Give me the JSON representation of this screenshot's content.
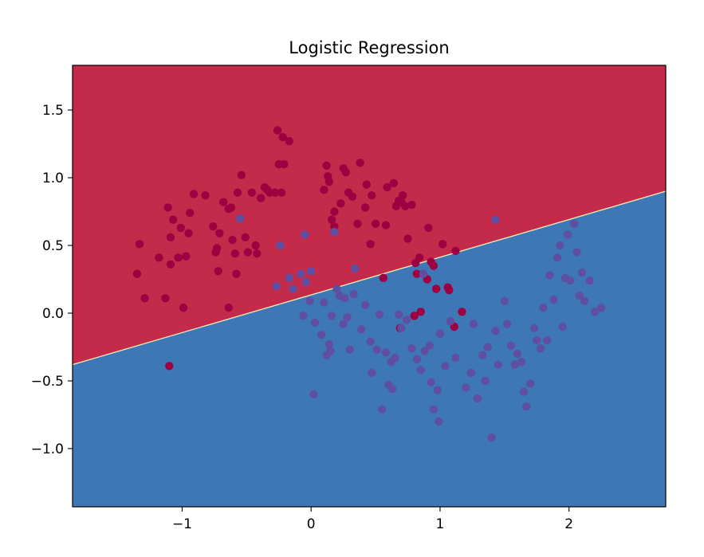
{
  "chart_data": {
    "type": "scatter",
    "title": "Logistic Regression",
    "xlabel": "",
    "ylabel": "",
    "xlim": [
      -1.85,
      2.75
    ],
    "ylim": [
      -1.43,
      1.83
    ],
    "xticks": [
      {
        "v": -1,
        "label": "−1"
      },
      {
        "v": 0,
        "label": "0"
      },
      {
        "v": 1,
        "label": "1"
      },
      {
        "v": 2,
        "label": "2"
      }
    ],
    "yticks": [
      {
        "v": 1.5,
        "label": "1.5"
      },
      {
        "v": 1.0,
        "label": "1.0"
      },
      {
        "v": 0.5,
        "label": "0.5"
      },
      {
        "v": 0.0,
        "label": "0.0"
      },
      {
        "v": -0.5,
        "label": "−0.5"
      },
      {
        "v": -1.0,
        "label": "−1.0"
      }
    ],
    "grid": false,
    "legend": "none",
    "decision_boundary": {
      "x": [
        -1.85,
        2.75
      ],
      "y": [
        -0.38,
        0.9
      ]
    },
    "regions": {
      "upper_color": "#c42a49",
      "lower_color": "#3e77b5",
      "boundary_color": "#f4f0b6"
    },
    "series": [
      {
        "class": 0,
        "color": "#9e0142",
        "points": [
          [
            -1.35,
            0.29
          ],
          [
            -1.33,
            0.51
          ],
          [
            -1.29,
            0.11
          ],
          [
            -1.18,
            0.41
          ],
          [
            -1.13,
            0.11
          ],
          [
            -1.11,
            0.78
          ],
          [
            -1.09,
            0.56
          ],
          [
            -1.09,
            0.36
          ],
          [
            -1.07,
            0.69
          ],
          [
            -1.03,
            0.41
          ],
          [
            -1.01,
            0.63
          ],
          [
            -0.99,
            0.04
          ],
          [
            -0.97,
            0.42
          ],
          [
            -0.95,
            0.59
          ],
          [
            -0.94,
            0.74
          ],
          [
            -0.91,
            0.88
          ],
          [
            -0.82,
            0.87
          ],
          [
            -0.76,
            0.64
          ],
          [
            -0.74,
            0.45
          ],
          [
            -0.73,
            0.48
          ],
          [
            -0.72,
            0.31
          ],
          [
            -0.71,
            0.59
          ],
          [
            -0.68,
            0.82
          ],
          [
            -0.64,
            0.77
          ],
          [
            -0.64,
            0.04
          ],
          [
            -0.62,
            0.78
          ],
          [
            -0.61,
            0.54
          ],
          [
            -0.59,
            0.44
          ],
          [
            -0.58,
            0.29
          ],
          [
            -0.57,
            0.89
          ],
          [
            -0.54,
            1.02
          ],
          [
            -0.51,
            0.56
          ],
          [
            -0.49,
            0.45
          ],
          [
            -0.46,
            0.89
          ],
          [
            -0.43,
            0.5
          ],
          [
            -0.42,
            0.44
          ],
          [
            -0.39,
            0.85
          ],
          [
            -0.36,
            0.93
          ],
          [
            -0.34,
            0.91
          ],
          [
            -0.32,
            0.89
          ],
          [
            -0.28,
            0.89
          ],
          [
            -0.26,
            1.35
          ],
          [
            -0.25,
            1.1
          ],
          [
            -0.23,
            0.89
          ],
          [
            -0.22,
            1.3
          ],
          [
            -0.21,
            1.1
          ],
          [
            -0.17,
            1.27
          ],
          [
            0.1,
            0.91
          ],
          [
            0.12,
            1.09
          ],
          [
            0.13,
            1.01
          ],
          [
            0.14,
            0.97
          ],
          [
            0.16,
            0.69
          ],
          [
            0.18,
            0.64
          ],
          [
            0.18,
            0.75
          ],
          [
            0.23,
            0.81
          ],
          [
            0.25,
            1.07
          ],
          [
            0.27,
            1.04
          ],
          [
            0.29,
            0.89
          ],
          [
            0.32,
            0.86
          ],
          [
            0.36,
            0.66
          ],
          [
            0.38,
            1.11
          ],
          [
            0.42,
            0.78
          ],
          [
            0.43,
            0.95
          ],
          [
            0.46,
            0.51
          ],
          [
            0.47,
            0.87
          ],
          [
            0.5,
            0.66
          ],
          [
            0.56,
            0.26
          ],
          [
            0.58,
            0.65
          ],
          [
            0.59,
            0.93
          ],
          [
            0.64,
            0.96
          ],
          [
            0.66,
            0.79
          ],
          [
            0.68,
            0.83
          ],
          [
            0.7,
            0.82
          ],
          [
            0.71,
            0.87
          ],
          [
            0.73,
            0.79
          ],
          [
            0.75,
            0.55
          ],
          [
            0.78,
            0.8
          ],
          [
            0.81,
            0.37
          ],
          [
            0.82,
            0.29
          ],
          [
            0.84,
            0.41
          ],
          [
            0.87,
            0.29
          ],
          [
            0.9,
            0.25
          ],
          [
            0.91,
            0.63
          ],
          [
            0.93,
            0.38
          ],
          [
            0.95,
            0.35
          ],
          [
            0.97,
            0.18
          ],
          [
            1.02,
            0.51
          ],
          [
            1.06,
            0.19
          ],
          [
            1.07,
            0.17
          ],
          [
            1.12,
            0.46
          ],
          [
            0.69,
            -0.11
          ],
          [
            0.8,
            -0.02
          ],
          [
            0.85,
            0.01
          ],
          [
            1.11,
            -0.1
          ],
          [
            1.17,
            0.01
          ],
          [
            -1.1,
            -0.39
          ]
        ]
      },
      {
        "class": 1,
        "color": "#5e4fa2",
        "points": [
          [
            -0.55,
            0.7
          ],
          [
            -0.27,
            0.2
          ],
          [
            -0.24,
            0.5
          ],
          [
            -0.17,
            0.26
          ],
          [
            -0.14,
            0.18
          ],
          [
            -0.08,
            0.29
          ],
          [
            -0.05,
            0.58
          ],
          [
            -0.04,
            0.23
          ],
          [
            0.0,
            0.31
          ],
          [
            -0.01,
            0.09
          ],
          [
            -0.06,
            -0.02
          ],
          [
            0.02,
            -0.6
          ],
          [
            0.03,
            -0.07
          ],
          [
            0.08,
            -0.16
          ],
          [
            0.1,
            0.08
          ],
          [
            0.12,
            -0.31
          ],
          [
            0.14,
            -0.23
          ],
          [
            0.15,
            -0.28
          ],
          [
            0.16,
            -0.02
          ],
          [
            0.18,
            0.6
          ],
          [
            0.2,
            0.18
          ],
          [
            0.22,
            0.13
          ],
          [
            0.25,
            -0.08
          ],
          [
            0.26,
            0.11
          ],
          [
            0.28,
            -0.03
          ],
          [
            0.3,
            -0.27
          ],
          [
            0.33,
            0.14
          ],
          [
            0.34,
            0.33
          ],
          [
            0.39,
            -0.12
          ],
          [
            0.42,
            0.06
          ],
          [
            0.46,
            -0.21
          ],
          [
            0.47,
            -0.44
          ],
          [
            0.51,
            -0.27
          ],
          [
            0.53,
            -0.01
          ],
          [
            0.55,
            -0.71
          ],
          [
            0.58,
            -0.29
          ],
          [
            0.6,
            -0.53
          ],
          [
            0.62,
            -0.36
          ],
          [
            0.63,
            -0.56
          ],
          [
            0.65,
            -0.33
          ],
          [
            0.7,
            -0.11
          ],
          [
            0.74,
            -0.05
          ],
          [
            0.78,
            -0.26
          ],
          [
            0.82,
            -0.34
          ],
          [
            0.85,
            -0.42
          ],
          [
            0.88,
            -0.28
          ],
          [
            0.92,
            -0.24
          ],
          [
            0.93,
            -0.51
          ],
          [
            0.95,
            -0.71
          ],
          [
            0.98,
            -0.57
          ],
          [
            0.99,
            -0.8
          ],
          [
            1.0,
            -0.15
          ],
          [
            1.04,
            -0.39
          ],
          [
            1.08,
            -0.06
          ],
          [
            1.12,
            -0.33
          ],
          [
            1.2,
            -0.55
          ],
          [
            1.24,
            -0.44
          ],
          [
            1.26,
            -0.08
          ],
          [
            1.29,
            -0.63
          ],
          [
            1.33,
            -0.31
          ],
          [
            1.35,
            -0.5
          ],
          [
            1.37,
            -0.25
          ],
          [
            1.4,
            -0.92
          ],
          [
            1.43,
            -0.13
          ],
          [
            1.45,
            -0.38
          ],
          [
            1.5,
            0.09
          ],
          [
            1.52,
            -0.08
          ],
          [
            1.55,
            -0.24
          ],
          [
            1.58,
            -0.38
          ],
          [
            1.6,
            -0.3
          ],
          [
            1.63,
            -0.36
          ],
          [
            1.65,
            -0.58
          ],
          [
            1.67,
            -0.69
          ],
          [
            1.7,
            -0.52
          ],
          [
            1.73,
            -0.11
          ],
          [
            1.75,
            -0.2
          ],
          [
            1.78,
            -0.26
          ],
          [
            1.8,
            0.04
          ],
          [
            1.83,
            -0.2
          ],
          [
            1.85,
            0.28
          ],
          [
            1.88,
            0.1
          ],
          [
            1.91,
            0.41
          ],
          [
            1.93,
            0.5
          ],
          [
            1.95,
            -0.1
          ],
          [
            1.97,
            0.26
          ],
          [
            1.99,
            0.58
          ],
          [
            2.01,
            0.24
          ],
          [
            2.04,
            0.66
          ],
          [
            2.06,
            0.45
          ],
          [
            2.08,
            0.13
          ],
          [
            2.1,
            0.3
          ],
          [
            2.12,
            0.09
          ],
          [
            2.16,
            0.24
          ],
          [
            2.2,
            0.01
          ],
          [
            2.25,
            0.04
          ],
          [
            1.43,
            0.69
          ],
          [
            0.87,
            0.29
          ],
          [
            0.68,
            -0.01
          ]
        ]
      }
    ]
  }
}
